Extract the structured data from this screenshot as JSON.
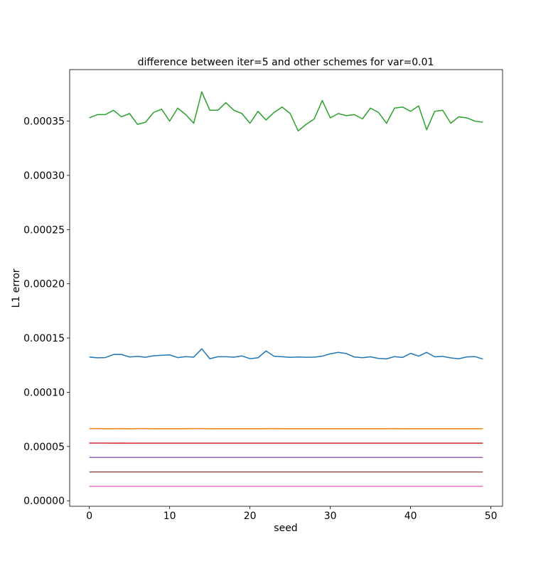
{
  "chart_data": {
    "type": "line",
    "title": "difference between iter=5 and other schemes for var=0.01",
    "xlabel": "seed",
    "ylabel": "L1 error",
    "xlim": [
      -2.45,
      51.45
    ],
    "ylim": [
      -5.1e-06,
      0.0003975
    ],
    "xticks": [
      0,
      10,
      20,
      30,
      40,
      50
    ],
    "xtick_labels": [
      "0",
      "10",
      "20",
      "30",
      "40",
      "50"
    ],
    "yticks": [
      0.0,
      5e-05,
      0.0001,
      0.00015,
      0.0002,
      0.00025,
      0.0003,
      0.00035
    ],
    "ytick_labels": [
      "0.00000",
      "0.00005",
      "0.00010",
      "0.00015",
      "0.00020",
      "0.00025",
      "0.00030",
      "0.00035"
    ],
    "grid": false,
    "x": [
      0,
      1,
      2,
      3,
      4,
      5,
      6,
      7,
      8,
      9,
      10,
      11,
      12,
      13,
      14,
      15,
      16,
      17,
      18,
      19,
      20,
      21,
      22,
      23,
      24,
      25,
      26,
      27,
      28,
      29,
      30,
      31,
      32,
      33,
      34,
      35,
      36,
      37,
      38,
      39,
      40,
      41,
      42,
      43,
      44,
      45,
      46,
      47,
      48,
      49
    ],
    "series": [
      {
        "color": "#2ca02c",
        "values": [
          0.000353,
          0.000356,
          0.000356,
          0.00036,
          0.000354,
          0.000357,
          0.000347,
          0.000349,
          0.000358,
          0.000361,
          0.00035,
          0.000362,
          0.000356,
          0.000348,
          0.000377,
          0.00036,
          0.00036,
          0.000367,
          0.00036,
          0.000357,
          0.000348,
          0.000359,
          0.000351,
          0.000358,
          0.000363,
          0.000357,
          0.000341,
          0.000347,
          0.000352,
          0.000369,
          0.000353,
          0.000357,
          0.000355,
          0.000356,
          0.000352,
          0.000362,
          0.000358,
          0.000348,
          0.000362,
          0.000363,
          0.000359,
          0.000364,
          0.000342,
          0.000359,
          0.00036,
          0.000348,
          0.000354,
          0.000353,
          0.00035,
          0.000349
        ]
      },
      {
        "color": "#1f77b4",
        "values": [
          0.0001325,
          0.0001318,
          0.000132,
          0.0001348,
          0.0001349,
          0.0001325,
          0.0001331,
          0.0001323,
          0.0001337,
          0.0001341,
          0.0001345,
          0.000132,
          0.0001329,
          0.0001324,
          0.0001401,
          0.0001309,
          0.0001328,
          0.0001328,
          0.0001324,
          0.0001335,
          0.000131,
          0.0001318,
          0.0001381,
          0.0001332,
          0.0001328,
          0.0001322,
          0.0001325,
          0.0001323,
          0.0001324,
          0.0001333,
          0.0001355,
          0.0001368,
          0.0001357,
          0.0001325,
          0.0001319,
          0.0001327,
          0.0001312,
          0.0001308,
          0.0001329,
          0.0001321,
          0.0001359,
          0.0001333,
          0.0001368,
          0.0001327,
          0.0001331,
          0.0001317,
          0.0001309,
          0.0001326,
          0.0001329,
          0.0001307
        ]
      },
      {
        "color": "#ff7f0e",
        "values": [
          6.65e-05,
          6.65e-05,
          6.64e-05,
          6.64e-05,
          6.65e-05,
          6.63e-05,
          6.65e-05,
          6.65e-05,
          6.64e-05,
          6.64e-05,
          6.64e-05,
          6.64e-05,
          6.64e-05,
          6.65e-05,
          6.65e-05,
          6.64e-05,
          6.64e-05,
          6.64e-05,
          6.64e-05,
          6.64e-05,
          6.64e-05,
          6.64e-05,
          6.64e-05,
          6.65e-05,
          6.64e-05,
          6.64e-05,
          6.64e-05,
          6.64e-05,
          6.64e-05,
          6.64e-05,
          6.64e-05,
          6.64e-05,
          6.64e-05,
          6.64e-05,
          6.64e-05,
          6.64e-05,
          6.64e-05,
          6.64e-05,
          6.65e-05,
          6.64e-05,
          6.64e-05,
          6.64e-05,
          6.64e-05,
          6.64e-05,
          6.64e-05,
          6.64e-05,
          6.64e-05,
          6.64e-05,
          6.64e-05,
          6.64e-05
        ]
      },
      {
        "color": "#d62728",
        "values": [
          5.32e-05,
          5.32e-05,
          5.32e-05,
          5.31e-05,
          5.32e-05,
          5.31e-05,
          5.31e-05,
          5.31e-05,
          5.31e-05,
          5.31e-05,
          5.31e-05,
          5.31e-05,
          5.31e-05,
          5.31e-05,
          5.31e-05,
          5.31e-05,
          5.31e-05,
          5.31e-05,
          5.31e-05,
          5.31e-05,
          5.31e-05,
          5.31e-05,
          5.31e-05,
          5.31e-05,
          5.31e-05,
          5.31e-05,
          5.31e-05,
          5.31e-05,
          5.31e-05,
          5.31e-05,
          5.31e-05,
          5.31e-05,
          5.31e-05,
          5.31e-05,
          5.31e-05,
          5.31e-05,
          5.31e-05,
          5.31e-05,
          5.31e-05,
          5.31e-05,
          5.31e-05,
          5.31e-05,
          5.31e-05,
          5.31e-05,
          5.31e-05,
          5.31e-05,
          5.31e-05,
          5.31e-05,
          5.31e-05,
          5.31e-05
        ]
      },
      {
        "color": "#9467bd",
        "values": [
          3.99e-05,
          3.99e-05,
          3.99e-05,
          3.99e-05,
          3.99e-05,
          3.99e-05,
          3.99e-05,
          3.99e-05,
          3.99e-05,
          3.99e-05,
          3.99e-05,
          3.99e-05,
          3.99e-05,
          3.99e-05,
          3.99e-05,
          3.99e-05,
          3.99e-05,
          3.99e-05,
          3.99e-05,
          3.99e-05,
          3.99e-05,
          3.99e-05,
          3.99e-05,
          3.99e-05,
          3.99e-05,
          3.99e-05,
          3.99e-05,
          3.99e-05,
          3.99e-05,
          3.99e-05,
          3.99e-05,
          3.99e-05,
          3.99e-05,
          3.99e-05,
          3.99e-05,
          3.99e-05,
          3.99e-05,
          3.99e-05,
          3.99e-05,
          3.99e-05,
          3.99e-05,
          3.99e-05,
          3.99e-05,
          3.99e-05,
          3.99e-05,
          3.99e-05,
          3.99e-05,
          3.99e-05,
          3.99e-05,
          3.99e-05
        ]
      },
      {
        "color": "#8c564b",
        "values": [
          2.66e-05,
          2.66e-05,
          2.66e-05,
          2.66e-05,
          2.66e-05,
          2.66e-05,
          2.66e-05,
          2.66e-05,
          2.66e-05,
          2.66e-05,
          2.66e-05,
          2.66e-05,
          2.66e-05,
          2.66e-05,
          2.66e-05,
          2.66e-05,
          2.66e-05,
          2.66e-05,
          2.66e-05,
          2.66e-05,
          2.66e-05,
          2.66e-05,
          2.66e-05,
          2.66e-05,
          2.66e-05,
          2.66e-05,
          2.66e-05,
          2.66e-05,
          2.66e-05,
          2.66e-05,
          2.66e-05,
          2.66e-05,
          2.66e-05,
          2.66e-05,
          2.66e-05,
          2.66e-05,
          2.66e-05,
          2.66e-05,
          2.66e-05,
          2.66e-05,
          2.66e-05,
          2.66e-05,
          2.66e-05,
          2.66e-05,
          2.66e-05,
          2.66e-05,
          2.66e-05,
          2.66e-05,
          2.66e-05,
          2.66e-05
        ]
      },
      {
        "color": "#e377c2",
        "values": [
          1.33e-05,
          1.33e-05,
          1.33e-05,
          1.33e-05,
          1.33e-05,
          1.33e-05,
          1.33e-05,
          1.33e-05,
          1.33e-05,
          1.33e-05,
          1.33e-05,
          1.33e-05,
          1.33e-05,
          1.33e-05,
          1.33e-05,
          1.33e-05,
          1.33e-05,
          1.33e-05,
          1.33e-05,
          1.33e-05,
          1.33e-05,
          1.33e-05,
          1.33e-05,
          1.33e-05,
          1.33e-05,
          1.33e-05,
          1.33e-05,
          1.33e-05,
          1.33e-05,
          1.33e-05,
          1.33e-05,
          1.33e-05,
          1.33e-05,
          1.33e-05,
          1.33e-05,
          1.33e-05,
          1.33e-05,
          1.33e-05,
          1.33e-05,
          1.33e-05,
          1.33e-05,
          1.33e-05,
          1.33e-05,
          1.33e-05,
          1.33e-05,
          1.33e-05,
          1.33e-05,
          1.33e-05,
          1.33e-05,
          1.33e-05
        ]
      }
    ]
  }
}
